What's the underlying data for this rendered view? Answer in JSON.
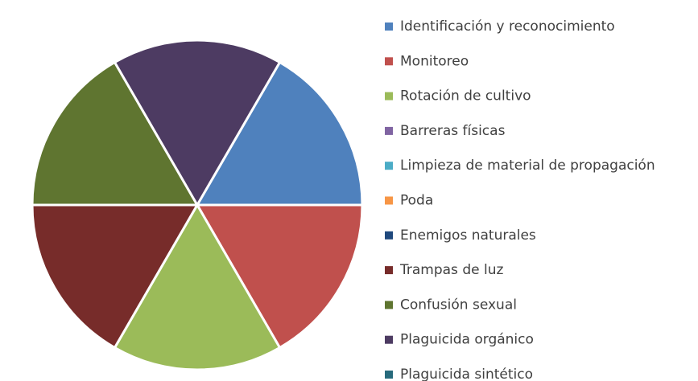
{
  "chart_data": {
    "type": "pie",
    "categories": [
      "Identificación y reconocimiento",
      "Monitoreo",
      "Rotación de cultivo",
      "Barreras físicas",
      "Limpieza de material de propagación",
      "Poda",
      "Enemigos naturales",
      "Trampas de luz",
      "Confusión sexual",
      "Plaguicida orgánico",
      "Plaguicida sintético"
    ],
    "values": [
      1,
      1,
      1,
      0,
      0,
      0,
      0,
      1,
      1,
      1,
      0
    ],
    "colors": [
      "#4f81bd",
      "#c0504d",
      "#9bbb59",
      "#8064a2",
      "#4bacc6",
      "#f79646",
      "#1f497d",
      "#772c2a",
      "#5f7530",
      "#4d3b62",
      "#276a7c"
    ],
    "start_angle": 30,
    "legend": "right"
  }
}
